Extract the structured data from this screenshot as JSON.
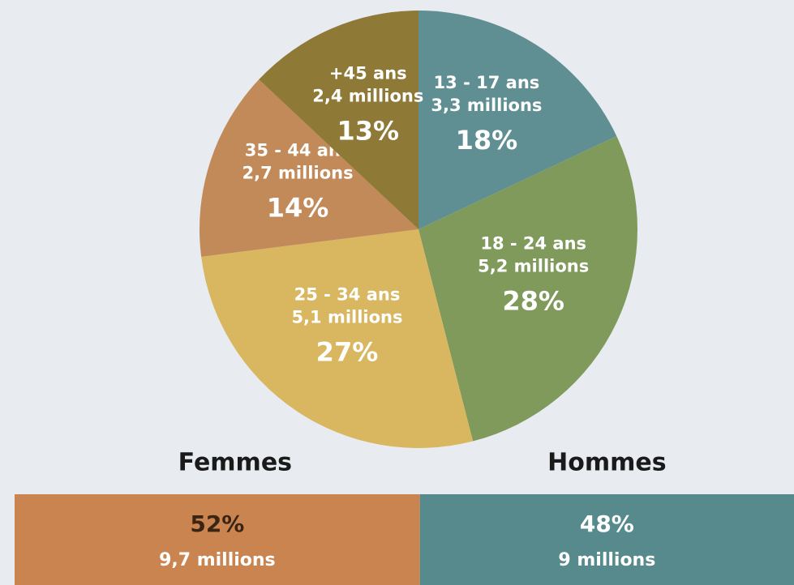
{
  "chart_data": [
    {
      "type": "pie",
      "categories": [
        "13 - 17 ans",
        "18 - 24 ans",
        "25 - 34 ans",
        "35 - 44 ans",
        "+45 ans"
      ],
      "values": [
        18,
        28,
        27,
        14,
        13
      ],
      "value_labels": [
        "18%",
        "28%",
        "27%",
        "14%",
        "13%"
      ],
      "details": [
        "3,3 millions",
        "5,2 millions",
        "5,1 millions",
        "2,7 millions",
        "2,4 millions"
      ],
      "colors": [
        "#5f8f92",
        "#7f9a5a",
        "#d8b760",
        "#c28a58",
        "#8e7a36"
      ]
    },
    {
      "type": "stacked_bar",
      "series": [
        {
          "name": "Femmes",
          "color": "#c9844f",
          "values": [
            52
          ],
          "value_labels": [
            "52%"
          ],
          "details": [
            "9,7 millions"
          ]
        },
        {
          "name": "Hommes",
          "color": "#578a8c",
          "values": [
            48
          ],
          "value_labels": [
            "48%"
          ],
          "details": [
            "9 millions"
          ]
        }
      ]
    }
  ]
}
